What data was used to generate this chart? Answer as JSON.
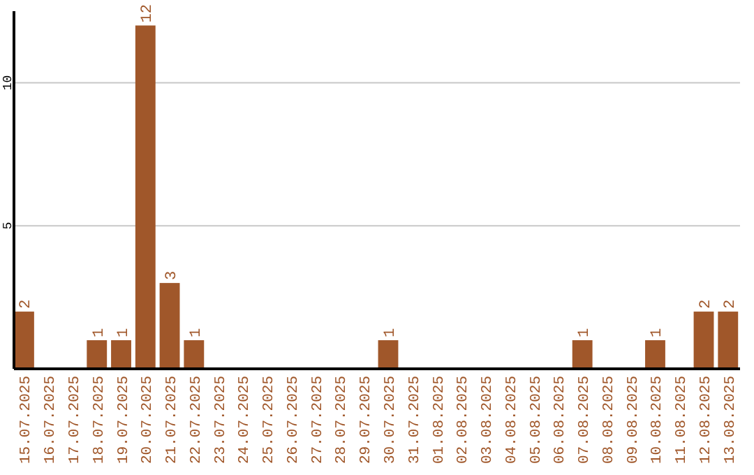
{
  "chart_data": {
    "type": "bar",
    "categories": [
      "15.07.2025",
      "16.07.2025",
      "17.07.2025",
      "18.07.2025",
      "19.07.2025",
      "20.07.2025",
      "21.07.2025",
      "22.07.2025",
      "23.07.2025",
      "24.07.2025",
      "25.07.2025",
      "26.07.2025",
      "27.07.2025",
      "28.07.2025",
      "29.07.2025",
      "30.07.2025",
      "31.07.2025",
      "01.08.2025",
      "02.08.2025",
      "03.08.2025",
      "04.08.2025",
      "05.08.2025",
      "06.08.2025",
      "07.08.2025",
      "08.08.2025",
      "09.08.2025",
      "10.08.2025",
      "11.08.2025",
      "12.08.2025",
      "13.08.2025"
    ],
    "values": [
      2,
      0,
      0,
      1,
      1,
      12,
      3,
      1,
      0,
      0,
      0,
      0,
      0,
      0,
      0,
      1,
      0,
      0,
      0,
      0,
      0,
      0,
      0,
      1,
      0,
      0,
      1,
      0,
      2,
      2
    ],
    "value_labels": [
      "2",
      null,
      null,
      "1",
      "1",
      "12",
      "3",
      "1",
      null,
      null,
      null,
      null,
      null,
      null,
      null,
      "1",
      null,
      null,
      null,
      null,
      null,
      null,
      null,
      "1",
      null,
      null,
      "1",
      null,
      "2",
      "2"
    ],
    "color": "#a0572a",
    "ylim": [
      0,
      12.5
    ],
    "yticks": [
      {
        "value": 0,
        "label": null
      },
      5,
      10
    ],
    "grid": "y"
  }
}
